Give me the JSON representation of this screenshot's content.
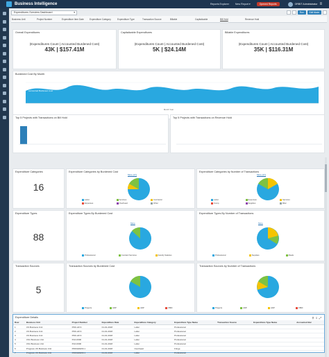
{
  "app": {
    "title": "Business Intelligence"
  },
  "topbar": {
    "menu": [
      "Reports Explorer",
      "New Report ▾"
    ],
    "opened_reports": "Opened Reports",
    "user": "ORBIT Administrator"
  },
  "toolbar": {
    "dashboard": "Expenditures Overview Dashboard",
    "run_label": "Run",
    "edit_label": "Edit Mode"
  },
  "filters": [
    "Business Unit",
    "Project Number",
    "Expenditure Item Date",
    "Expenditure Category",
    "Expenditure Type",
    "Transaction Source",
    "Billable",
    "Capitalizable",
    "Bill Hold",
    "Revenue Hold"
  ],
  "kpis": [
    {
      "title": "Overall Expenditures",
      "sub": "(Expenditures Count | Accounted Burdened Cost)",
      "value": "43K | $157.41M"
    },
    {
      "title": "Capitalizable Expenditures",
      "sub": "(Expenditures Count | Accounted Burdened Cost)",
      "value": "5K | $24.14M"
    },
    {
      "title": "Billable Expenditures",
      "sub": "(Expenditures Count | Accounted Burdened Cost)",
      "value": "35K | $116.31M"
    }
  ],
  "area_chart": {
    "title": "Burdened Cost By Month",
    "series_label": "Accounted Burdened Cost",
    "xlabel": "Month Year"
  },
  "bar_panels": [
    {
      "title": "Top 5 Projects with Transactions on Bill Hold"
    },
    {
      "title": "Top 5 Projects with Transactions on Revenue Hold"
    }
  ],
  "categories": {
    "count_title": "Expenditure Categories",
    "count": "16",
    "by_cost_title": "Expenditure Categories by Burdened Cost",
    "by_txn_title": "Expenditure Categories by Number of Transactions",
    "more_label": "More (27)",
    "legend": [
      "Labor",
      "Services",
      "Contractor",
      "Expenses",
      "Overhead",
      "Other",
      "Comp",
      "Supplies",
      "Misc"
    ]
  },
  "types": {
    "count_title": "Expenditure Types",
    "count": "88",
    "by_cost_title": "Expenditure Types By Burdened Cost",
    "by_txn_title": "Expenditure Types By Number of Transactions",
    "more_label": "More",
    "legend": [
      "Professional",
      "Contract Services",
      "Faculty Salaries",
      "Supplies",
      "Meals",
      "Other"
    ]
  },
  "sources": {
    "count_title": "Transaction Sources",
    "count": "5",
    "by_cost_title": "Transaction Sources by Burdened Cost",
    "by_txn_title": "Transaction Sources by Number of Transactions",
    "legend": [
      "Projects",
      "ADP",
      "ADP",
      "FBDI"
    ]
  },
  "details": {
    "title": "Expenditure Details",
    "columns": [
      "Row",
      "Business Unit",
      "Project Number",
      "Expenditure Date",
      "Expenditure Category",
      "Expenditure Type Name",
      "Transaction Source",
      "Expenditure Type Name",
      "Accounted Bur"
    ],
    "rows": [
      [
        "1",
        "US Business Unit",
        "PDF-H0 N",
        "01-01-2018",
        "Labor",
        "Professional",
        "",
        "",
        ""
      ],
      [
        "2",
        "US Business Unit",
        "PDF-H0 N",
        "01-01-2018",
        "Labor",
        "Professional",
        "",
        "",
        ""
      ],
      [
        "3",
        "US Business Unit",
        "PDF-H0 N",
        "01-01-2018",
        "Labor",
        "Professional",
        "",
        "",
        ""
      ],
      [
        "4",
        "US1 Business Unit",
        "PLD-0000",
        "01-01-2018",
        "Labor",
        "Professional",
        "",
        "",
        ""
      ],
      [
        "5",
        "US1 Business Unit",
        "PLD-0000",
        "01-01-2018",
        "Labor",
        "Professional",
        "",
        "",
        ""
      ],
      [
        "6",
        "Progress US Business Unit",
        "PROGRESS 1",
        "01-01-2018",
        "Overhead",
        "Fringe",
        "",
        "",
        ""
      ],
      [
        "7",
        "Progress US Business Unit",
        "PROGRESS 1",
        "01-01-2018",
        "Labor",
        "Professional",
        "",
        "",
        ""
      ]
    ]
  },
  "colors": {
    "accent": "#2d7fb8",
    "topbar": "#1d3550",
    "area": "#29a8e0"
  }
}
